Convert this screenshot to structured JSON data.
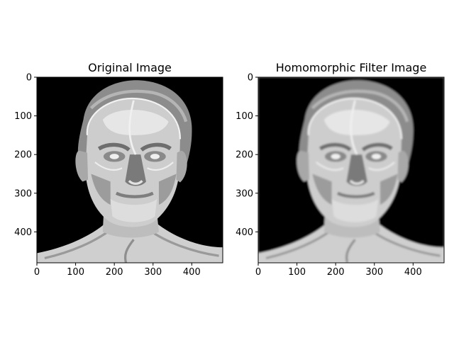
{
  "figure": {
    "background": "#ffffff"
  },
  "chart_data": [
    {
      "type": "image",
      "title": "Original Image",
      "xlabel": "",
      "ylabel": "",
      "xlim": [
        0,
        480
      ],
      "ylim": [
        480,
        0
      ],
      "xticks": [
        0,
        100,
        200,
        300,
        400
      ],
      "yticks": [
        0,
        100,
        200,
        300,
        400
      ],
      "colormap": "gray",
      "content": "grayscale portrait"
    },
    {
      "type": "image",
      "title": "Homomorphic Filter Image",
      "xlabel": "",
      "ylabel": "",
      "xlim": [
        0,
        480
      ],
      "ylim": [
        480,
        0
      ],
      "xticks": [
        0,
        100,
        200,
        300,
        400
      ],
      "yticks": [
        0,
        100,
        200,
        300,
        400
      ],
      "colormap": "gray",
      "content": "grayscale portrait"
    }
  ]
}
